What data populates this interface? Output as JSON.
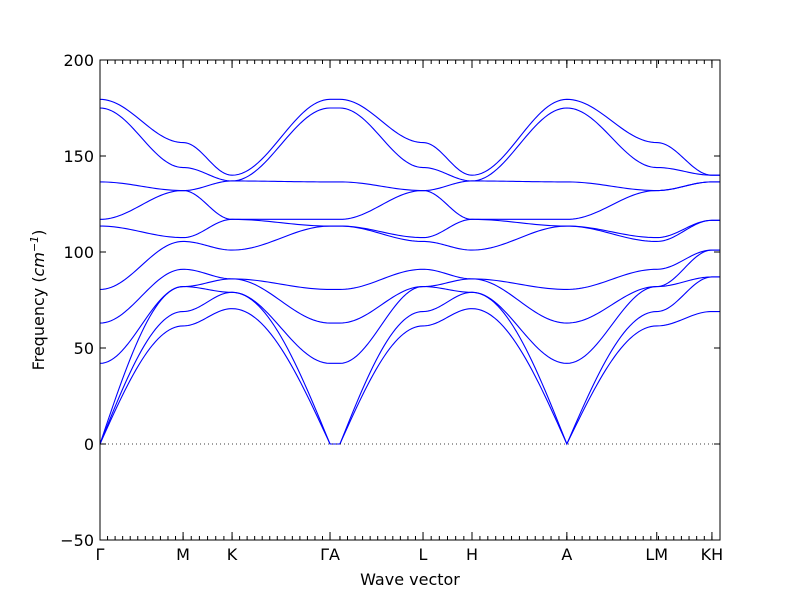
{
  "chart_data": {
    "type": "line",
    "xlabel": "Wave vector",
    "ylabel": "Frequency",
    "ylabel_unit": "cm",
    "ylabel_unit_exp": "−1",
    "ylim": [
      -50,
      200
    ],
    "xlim": [
      0,
      1
    ],
    "y_ticks": [
      -50,
      0,
      50,
      100,
      150,
      200
    ],
    "y_tick_labels": [
      "−50",
      "0",
      "50",
      "100",
      "150",
      "200"
    ],
    "grid": false,
    "legend": "none",
    "zero_line": true,
    "color": "#0000ff",
    "segments": [
      {
        "label": "Γ",
        "x_start": 0.0,
        "x_end": 0.134
      },
      {
        "label": "M",
        "x_start": 0.134,
        "x_end": 0.213
      },
      {
        "label": "K",
        "x_start": 0.213,
        "x_end": 0.371
      },
      {
        "label": "ΓA",
        "x_start": 0.371,
        "x_end": 0.387
      },
      {
        "label": "L",
        "x_start": 0.387,
        "x_end": 0.521
      },
      {
        "label": "H",
        "x_start": 0.521,
        "x_end": 0.6
      },
      {
        "label": "A",
        "x_start": 0.6,
        "x_end": 0.753
      },
      {
        "label": "LM",
        "x_start": 0.753,
        "x_end": 0.987
      },
      {
        "label": "KH",
        "x_start": 0.987,
        "x_end": 1.0
      }
    ],
    "special_points": [
      {
        "label": "Γ",
        "x": 0.0
      },
      {
        "label": "M",
        "x": 0.134
      },
      {
        "label": "K",
        "x": 0.213
      },
      {
        "label": "ΓA",
        "x": 0.371
      },
      {
        "label": "L",
        "x": 0.521
      },
      {
        "label": "H",
        "x": 0.6
      },
      {
        "label": "A",
        "x": 0.753
      },
      {
        "label": "LM",
        "x": 0.898
      },
      {
        "label": "KH",
        "x": 0.987
      }
    ],
    "special_values": [
      {
        "x": 0.0,
        "y": [
          0,
          0,
          0,
          42,
          63,
          80.5,
          113.5,
          117,
          136.5,
          175,
          179.5
        ]
      },
      {
        "x": 0.134,
        "y": [
          61.5,
          69,
          82,
          91,
          105.5,
          107.5,
          132,
          144,
          157
        ]
      },
      {
        "x": 0.213,
        "y": [
          70.5,
          79,
          86,
          101,
          117,
          137,
          140
        ]
      },
      {
        "x": 0.371,
        "y": [
          0,
          0,
          42,
          63,
          80.5,
          113.5,
          117,
          136.5,
          175,
          179.5
        ]
      },
      {
        "x": 0.387,
        "y": [
          0,
          0,
          42,
          63,
          80.5,
          113.5,
          117,
          136.5,
          175,
          179.5
        ]
      },
      {
        "x": 0.521,
        "y": [
          61.5,
          69,
          82,
          91,
          105.5,
          107.5,
          132,
          144,
          157
        ]
      },
      {
        "x": 0.6,
        "y": [
          70.5,
          79,
          86,
          101,
          117,
          137,
          140
        ]
      },
      {
        "x": 0.753,
        "y": [
          0,
          0,
          42,
          63,
          80.5,
          113.5,
          117,
          136.5,
          175,
          179.5
        ]
      },
      {
        "x": 0.898,
        "y": [
          61.5,
          69,
          82,
          91,
          105.5,
          107.5,
          132,
          144,
          157
        ]
      },
      {
        "x": 0.987,
        "y": [
          69,
          87,
          101,
          116.5,
          136.5,
          140
        ]
      },
      {
        "x": 1.0,
        "y": [
          69,
          87,
          101,
          116.5,
          136.5,
          140
        ]
      }
    ]
  }
}
